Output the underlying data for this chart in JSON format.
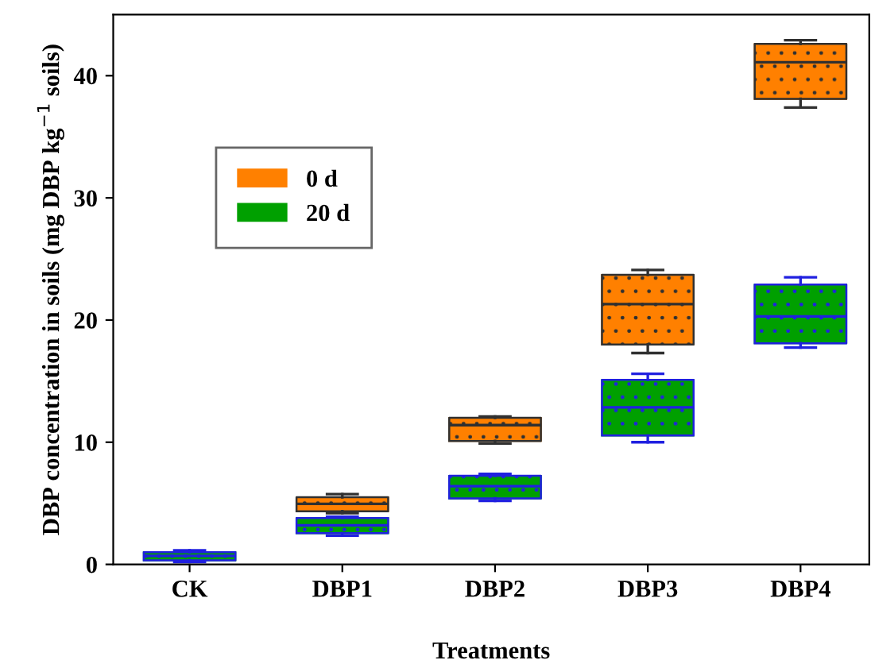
{
  "chart_data": {
    "type": "box",
    "xlabel": "Treatments",
    "ylabel": "DBP concentration in soils (mg DBP kg$^{−1}$ soils)",
    "categories": [
      "CK",
      "DBP1",
      "DBP2",
      "DBP3",
      "DBP4"
    ],
    "ylim": [
      0,
      45
    ],
    "yticks": [
      0,
      10,
      20,
      30,
      40
    ],
    "grid": false,
    "legend": "top left",
    "series": [
      {
        "name": "0 d",
        "color": "#ff8000",
        "boxes": [
          null,
          {
            "low": 4.2,
            "q1": 4.35,
            "median": 4.95,
            "q3": 5.5,
            "high": 5.75
          },
          {
            "low": 9.9,
            "q1": 10.1,
            "median": 11.4,
            "q3": 12.0,
            "high": 12.1
          },
          {
            "low": 17.3,
            "q1": 18.0,
            "median": 21.3,
            "q3": 23.7,
            "high": 24.1
          },
          {
            "low": 37.4,
            "q1": 38.1,
            "median": 41.1,
            "q3": 42.6,
            "high": 42.9
          }
        ]
      },
      {
        "name": "20 d",
        "color": "#00a000",
        "boxes": [
          {
            "low": 0.2,
            "q1": 0.33,
            "median": 0.7,
            "q3": 1.0,
            "high": 1.15
          },
          {
            "low": 2.35,
            "q1": 2.55,
            "median": 3.2,
            "q3": 3.8,
            "high": 3.9
          },
          {
            "low": 5.2,
            "q1": 5.4,
            "median": 6.4,
            "q3": 7.25,
            "high": 7.4
          },
          {
            "low": 10.0,
            "q1": 10.55,
            "median": 12.85,
            "q3": 15.1,
            "high": 15.6
          },
          {
            "low": 17.75,
            "q1": 18.1,
            "median": 20.3,
            "q3": 22.9,
            "high": 23.5
          }
        ]
      }
    ]
  }
}
